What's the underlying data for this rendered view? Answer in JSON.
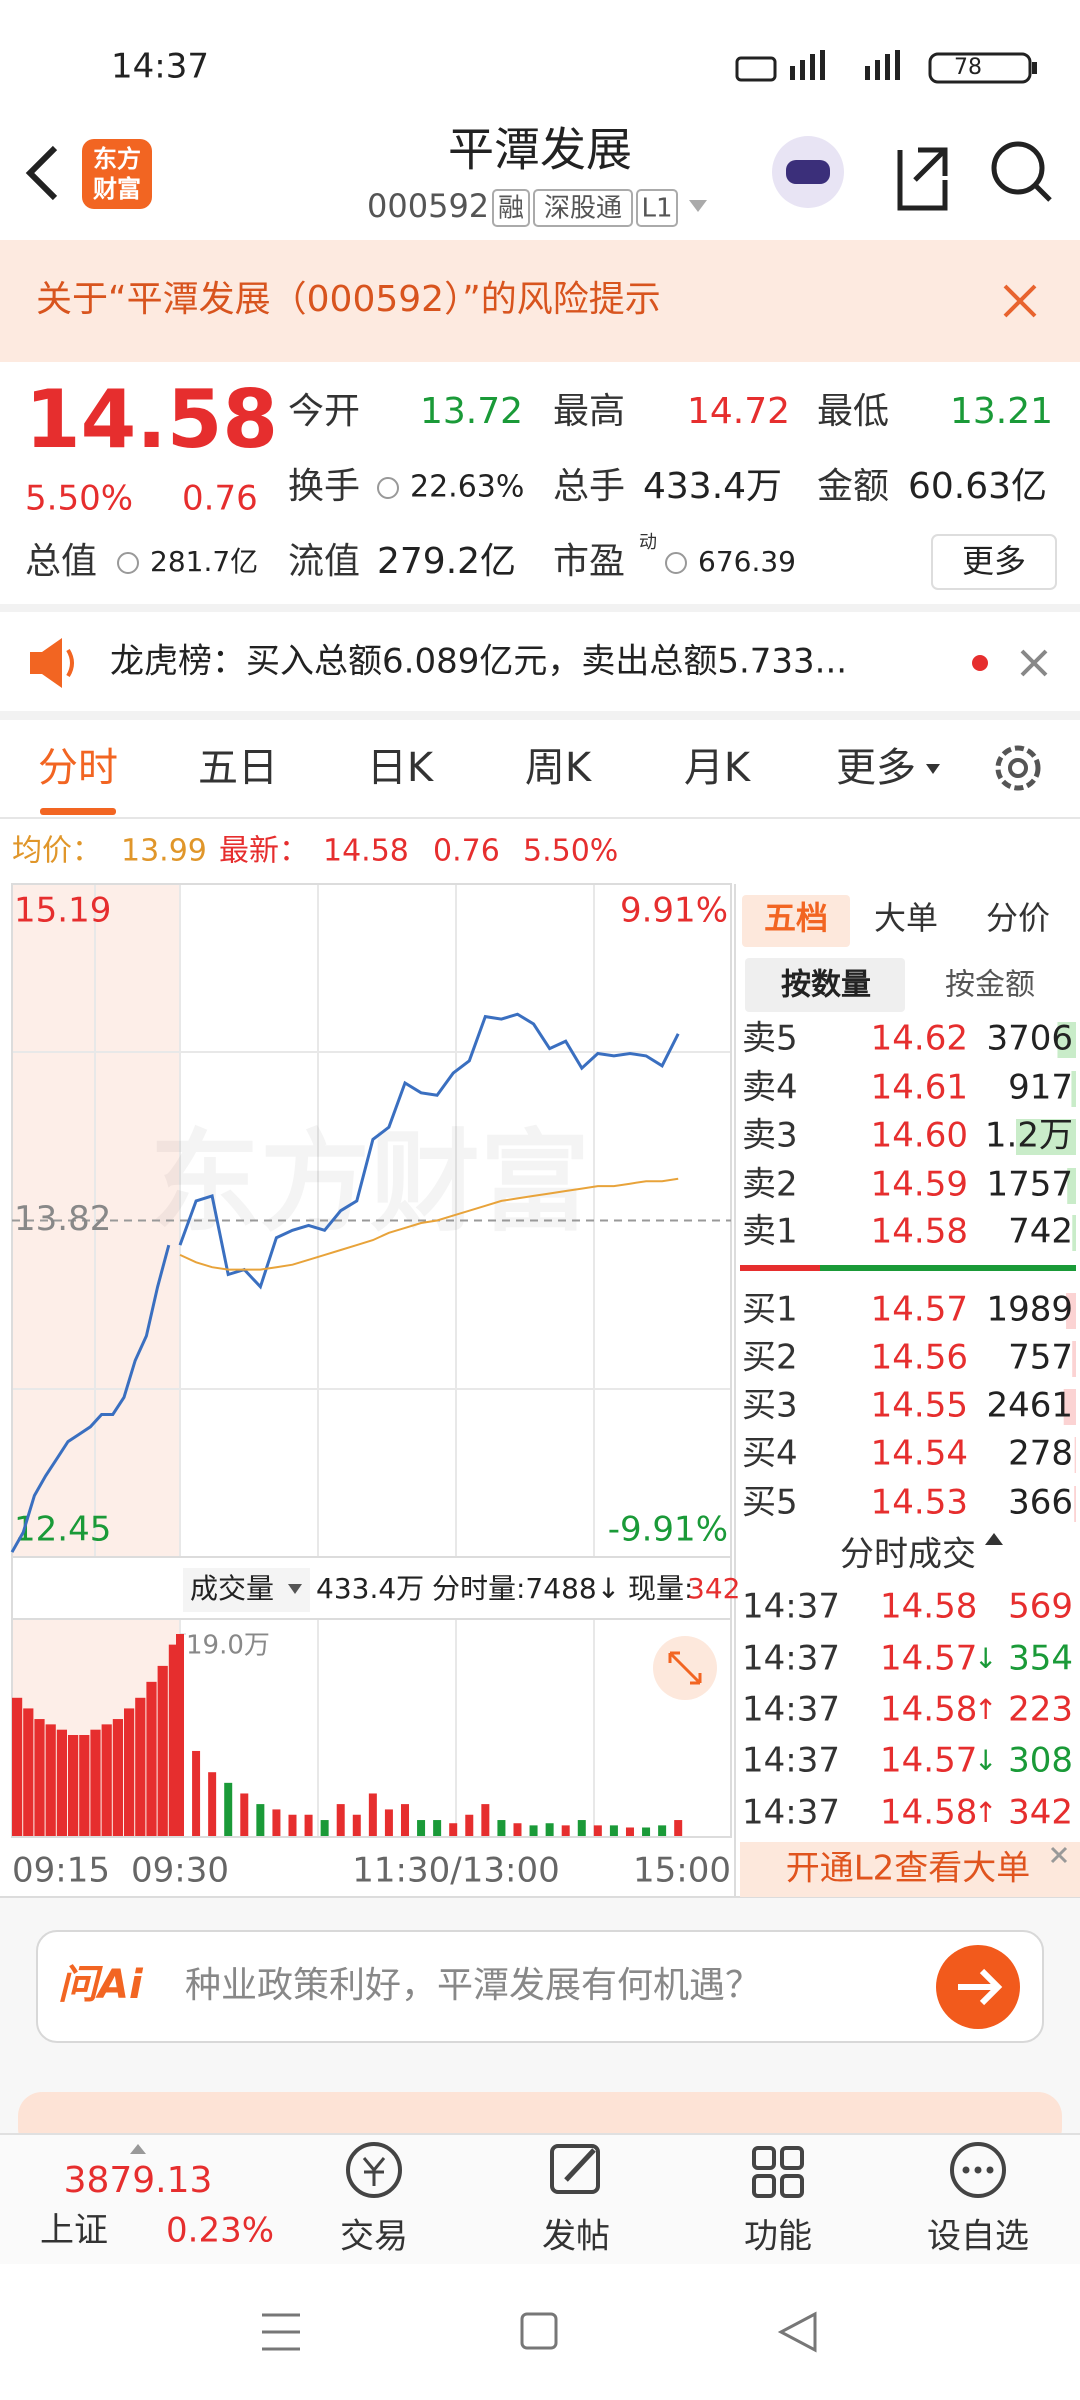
{
  "status_bar": {
    "time": "14:37",
    "battery": "78"
  },
  "header": {
    "logo": [
      "东方",
      "财富"
    ],
    "title": "平潭发展",
    "code": "000592",
    "tags": [
      "融",
      "深股通",
      "L1"
    ]
  },
  "risk_notice": "关于“平潭发展（000592）”的风险提示",
  "quote": {
    "price": "14.58",
    "change_pct": "5.50%",
    "change": "0.76",
    "more": "更多",
    "fields": [
      {
        "label": "今开",
        "value": "13.72"
      },
      {
        "label": "最高",
        "value": "14.72"
      },
      {
        "label": "最低",
        "value": "13.21"
      },
      {
        "label": "换手",
        "value": "22.63%"
      },
      {
        "label": "总手",
        "value": "433.4万"
      },
      {
        "label": "金额",
        "value": "60.63亿"
      },
      {
        "label": "总值",
        "value": "281.7亿"
      },
      {
        "label": "流值",
        "value": "279.2亿"
      },
      {
        "label": "市盈",
        "superscript": "动",
        "value": "676.39"
      }
    ]
  },
  "dragon_tiger": "龙虎榜：买入总额6.089亿元，卖出总额5.733...",
  "tabs": [
    "分时",
    "五日",
    "日K",
    "周K",
    "月K",
    "更多"
  ],
  "summary": {
    "avg_label": "均价：",
    "avg": "13.99",
    "latest_label": "最新：",
    "latest": "14.58",
    "change": "0.76",
    "change_pct": "5.50%"
  },
  "chart_data": {
    "type": "line",
    "watermark": "东方财富",
    "ylim": [
      12.45,
      15.19
    ],
    "yticks": [
      12.45,
      13.82,
      15.19
    ],
    "y2lim": [
      -9.91,
      9.91
    ],
    "y2ticks": [
      {
        "value": 9.91,
        "label": "9.91%"
      },
      {
        "value": -9.91,
        "label": "-9.91%"
      }
    ],
    "x_labels": [
      "09:15",
      "09:30",
      "11:30/13:00",
      "15:00"
    ],
    "preopen": {
      "color": "#3a6fc0",
      "values": [
        12.47,
        12.55,
        12.7,
        12.78,
        12.85,
        12.92,
        12.95,
        12.98,
        13.03,
        13.03,
        13.1,
        13.25,
        13.35,
        13.55,
        13.72
      ]
    },
    "series": [
      {
        "color": "#3a6fc0",
        "values": [
          13.72,
          13.9,
          13.92,
          13.6,
          13.62,
          13.55,
          13.75,
          13.78,
          13.8,
          13.78,
          13.86,
          13.9,
          14.15,
          14.2,
          14.38,
          14.34,
          14.33,
          14.42,
          14.47,
          14.65,
          14.64,
          14.66,
          14.62,
          14.52,
          14.55,
          14.44,
          14.5,
          14.49,
          14.5,
          14.49,
          14.45,
          14.58
        ]
      },
      {
        "color": "#e8a33a",
        "values": [
          13.68,
          13.65,
          13.63,
          13.62,
          13.62,
          13.62,
          13.63,
          13.64,
          13.66,
          13.68,
          13.7,
          13.72,
          13.74,
          13.77,
          13.79,
          13.81,
          13.82,
          13.84,
          13.86,
          13.88,
          13.9,
          13.91,
          13.92,
          13.93,
          13.94,
          13.95,
          13.96,
          13.96,
          13.97,
          13.98,
          13.98,
          13.99
        ]
      }
    ]
  },
  "volume_chart": {
    "type": "bar",
    "label": "成交量",
    "total": "433.4万",
    "minute_volume": "分时量:7488↓",
    "current_label": "现量:",
    "current": "342",
    "ylim": [
      0,
      19.0
    ],
    "yticks": [
      {
        "value": 19.0,
        "label": "19.0万"
      }
    ],
    "up_color": "#e62e2e",
    "down_color": "#1a9a38",
    "preopen_values": [
      13,
      12,
      11,
      10.5,
      10,
      9.5,
      9.5,
      10,
      10.5,
      11,
      12,
      13,
      14.5,
      16,
      18
    ],
    "values": [
      19.0,
      8,
      6,
      5,
      4,
      3,
      2.5,
      2,
      2,
      1.5,
      3,
      2,
      4,
      2.5,
      3,
      1.5,
      1.5,
      1.2,
      2,
      3,
      1.5,
      1.2,
      1,
      1.2,
      1,
      1.5,
      1,
      1,
      0.8,
      0.8,
      1,
      1.5
    ]
  },
  "order_book": {
    "tabs": [
      "五档",
      "大单",
      "分价"
    ],
    "modes": [
      "按数量",
      "按金额"
    ],
    "asks": [
      {
        "label": "卖5",
        "price": "14.62",
        "qty": 3706
      },
      {
        "label": "卖4",
        "price": "14.61",
        "qty": 917
      },
      {
        "label": "卖3",
        "price": "14.60",
        "qty": {
          "value": 12000,
          "label": "1.2万"
        }
      },
      {
        "label": "卖2",
        "price": "14.59",
        "qty": 1757
      },
      {
        "label": "卖1",
        "price": "14.58",
        "qty": 742
      }
    ],
    "bids": [
      {
        "label": "买1",
        "price": "14.57",
        "qty": 1989
      },
      {
        "label": "买2",
        "price": "14.56",
        "qty": 757
      },
      {
        "label": "买3",
        "price": "14.55",
        "qty": 2461
      },
      {
        "label": "买4",
        "price": "14.54",
        "qty": 278
      },
      {
        "label": "买5",
        "price": "14.53",
        "qty": 366
      }
    ]
  },
  "trades": {
    "title": "分时成交",
    "rows": [
      {
        "time": "14:37",
        "price": "14.58",
        "volume": "569"
      },
      {
        "time": "14:37",
        "price": "14.57",
        "arrow": "↓",
        "volume": "354"
      },
      {
        "time": "14:37",
        "price": "14.58",
        "arrow": "↑",
        "volume": "223"
      },
      {
        "time": "14:37",
        "price": "14.57",
        "arrow": "↓",
        "volume": "308"
      },
      {
        "time": "14:37",
        "price": "14.58",
        "arrow": "↑",
        "volume": "342"
      }
    ]
  },
  "l2_banner": "开通L2查看大单",
  "ai_box": {
    "logo": "问Ai",
    "prompt": "种业政策利好，平潭发展有何机遇？"
  },
  "bottom_bar": {
    "index_value": "3879.13",
    "index_name": "上证",
    "index_pct": "0.23%",
    "items": [
      "交易",
      "发帖",
      "功能",
      "设自选"
    ]
  }
}
